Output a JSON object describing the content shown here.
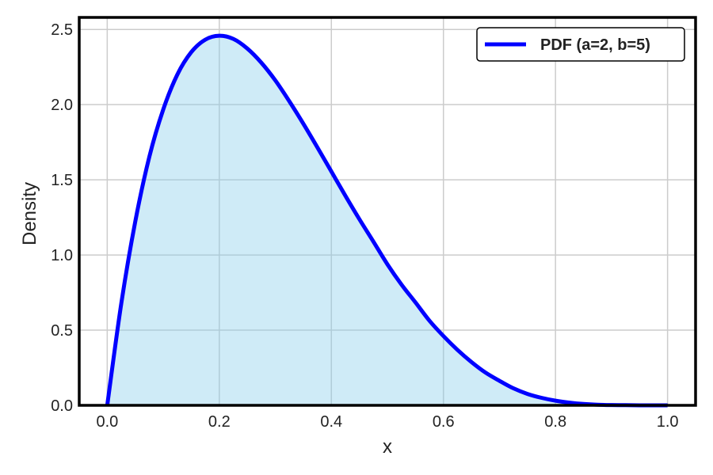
{
  "chart_data": {
    "type": "area",
    "xlabel": "x",
    "ylabel": "Density",
    "xlim": [
      -0.05,
      1.05
    ],
    "ylim": [
      0,
      2.58
    ],
    "xticks": [
      0.0,
      0.2,
      0.4,
      0.6,
      0.8,
      1.0
    ],
    "xtick_labels": [
      "0.0",
      "0.2",
      "0.4",
      "0.6",
      "0.8",
      "1.0"
    ],
    "yticks": [
      0.0,
      0.5,
      1.0,
      1.5,
      2.0,
      2.5
    ],
    "ytick_labels": [
      "0.0",
      "0.5",
      "1.0",
      "1.5",
      "2.0",
      "2.5"
    ],
    "grid": true,
    "legend_position": "top-right",
    "series": [
      {
        "name": "PDF (a=2, b=5)",
        "color": "#0000ff",
        "fill_color": "#87ceeb",
        "fill_opacity": 0.4,
        "x": [
          0.0,
          0.025,
          0.05,
          0.075,
          0.1,
          0.125,
          0.15,
          0.175,
          0.2,
          0.225,
          0.25,
          0.275,
          0.3,
          0.325,
          0.35,
          0.375,
          0.4,
          0.425,
          0.45,
          0.475,
          0.5,
          0.525,
          0.55,
          0.575,
          0.6,
          0.625,
          0.65,
          0.675,
          0.7,
          0.725,
          0.75,
          0.775,
          0.8,
          0.825,
          0.85,
          0.875,
          0.9,
          0.925,
          0.95,
          0.975,
          1.0
        ],
        "y": [
          0.0,
          0.676,
          1.222,
          1.651,
          1.968,
          2.199,
          2.349,
          2.432,
          2.458,
          2.437,
          2.373,
          2.279,
          2.161,
          2.022,
          1.873,
          1.716,
          1.555,
          1.394,
          1.238,
          1.089,
          0.938,
          0.804,
          0.685,
          0.563,
          0.461,
          0.369,
          0.288,
          0.218,
          0.163,
          0.113,
          0.076,
          0.05,
          0.031,
          0.018,
          0.009,
          0.004,
          0.002,
          0.001,
          0.0,
          0.0,
          0.0
        ]
      }
    ]
  }
}
